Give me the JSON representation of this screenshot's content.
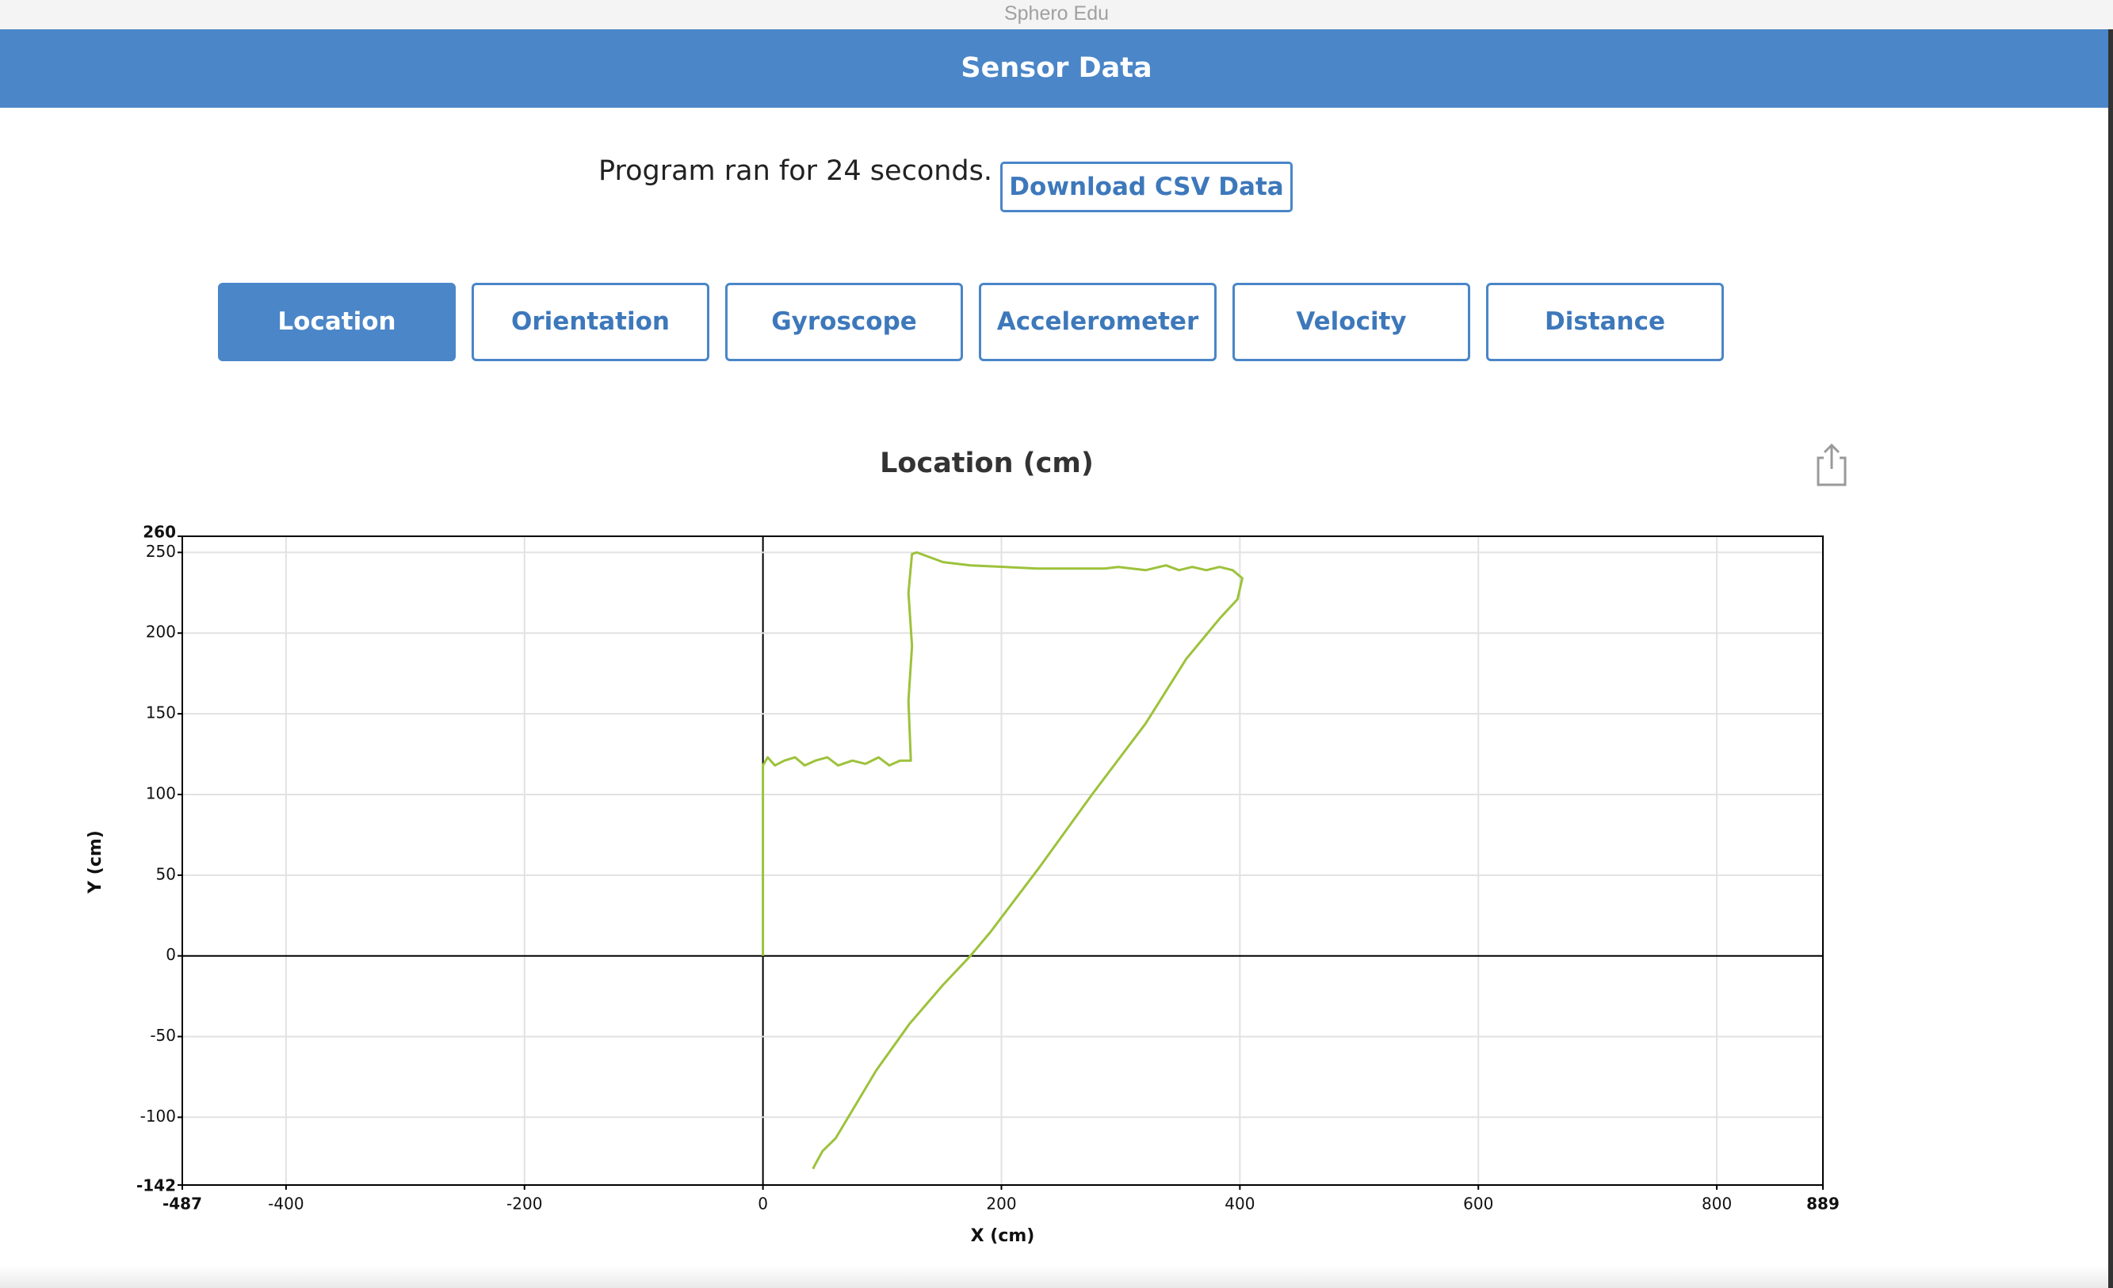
{
  "window_title": "Sphero Edu",
  "header": "Sensor Data",
  "run_info": "Program ran for 24 seconds.",
  "download_button": "Download CSV Data",
  "tabs": [
    "Location",
    "Orientation",
    "Gyroscope",
    "Accelerometer",
    "Velocity",
    "Distance"
  ],
  "active_tab": 0,
  "chart_data": {
    "type": "line",
    "title": "Location (cm)",
    "x_label": "X (cm)",
    "y_label": "Y (cm)",
    "xlim": [
      -487,
      889
    ],
    "ylim": [
      -142,
      260
    ],
    "xticks": [
      -487,
      -400,
      -200,
      0,
      200,
      400,
      600,
      800,
      889
    ],
    "yticks": [
      -142,
      -100,
      -50,
      0,
      50,
      100,
      150,
      200,
      250,
      260
    ],
    "grid": true,
    "series": [
      {
        "color": "#9dc23b",
        "x": [
          0,
          0,
          4,
          10,
          18,
          27,
          35,
          44,
          54,
          63,
          75,
          86,
          97,
          106,
          115,
          124,
          122,
          125,
          122,
          125,
          129,
          151,
          174,
          230,
          287,
          298,
          321,
          338,
          349,
          360,
          372,
          383,
          394,
          402,
          398,
          383,
          355,
          321,
          276,
          231,
          191,
          174,
          151,
          123,
          95,
          78,
          61,
          50,
          44,
          42
        ],
        "values": [
          0,
          118,
          123,
          118,
          121,
          123,
          118,
          121,
          123,
          118,
          121,
          119,
          123,
          118,
          121,
          121,
          158,
          192,
          225,
          249,
          250,
          244,
          242,
          240,
          240,
          241,
          239,
          242,
          239,
          241,
          239,
          241,
          239,
          234,
          221,
          209,
          184,
          144,
          100,
          54,
          15,
          0,
          -18,
          -42,
          -71,
          -92,
          -113,
          -121,
          -129,
          -132
        ]
      }
    ]
  }
}
